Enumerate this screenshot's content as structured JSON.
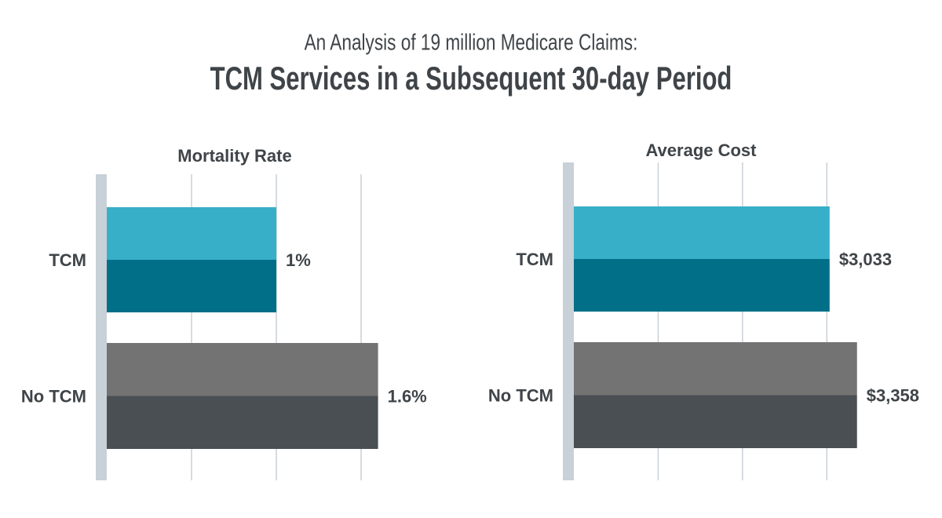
{
  "header": {
    "kicker": "An Analysis of 19 million Medicare Claims:",
    "title": "TCM Services in a Subsequent 30-day Period"
  },
  "chart_data": [
    {
      "type": "bar",
      "orientation": "horizontal",
      "title": "Mortality Rate",
      "categories": [
        "TCM",
        "No TCM"
      ],
      "values": [
        1,
        1.6
      ],
      "value_labels": [
        "1%",
        "1.6%"
      ],
      "colors": [
        [
          "#37afc9",
          "#006f87"
        ],
        [
          "#737373",
          "#4a4f54"
        ]
      ],
      "xlim": [
        0,
        1.75
      ],
      "xticks": [
        0.5,
        1,
        1.5
      ],
      "grid": true
    },
    {
      "type": "bar",
      "orientation": "horizontal",
      "title": "Average Cost",
      "categories": [
        "TCM",
        "No TCM"
      ],
      "values": [
        3033,
        3358
      ],
      "value_labels": [
        "$3,033",
        "$3,358"
      ],
      "colors": [
        [
          "#37afc9",
          "#006f87"
        ],
        [
          "#737373",
          "#4a4f54"
        ]
      ],
      "xlim": [
        0,
        3500
      ],
      "xticks": [
        1000,
        2000,
        3000
      ],
      "grid": true
    }
  ]
}
